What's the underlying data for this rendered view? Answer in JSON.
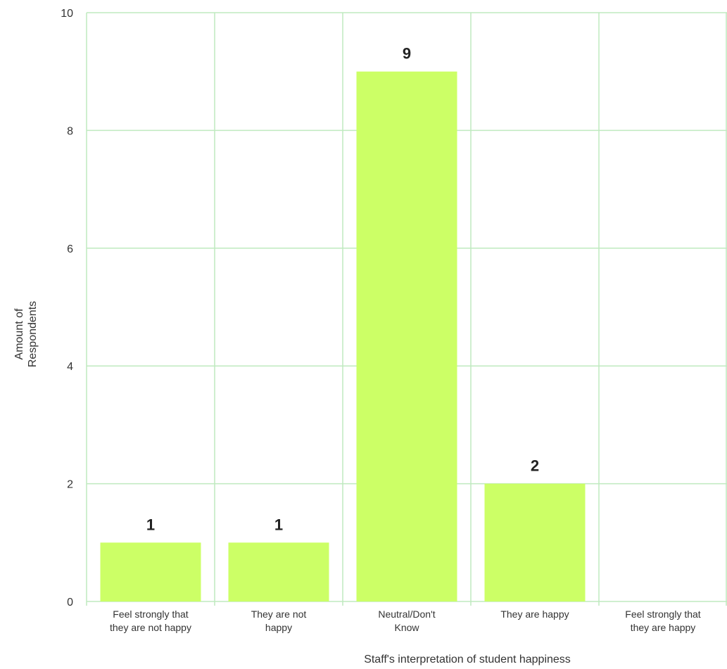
{
  "chart_data": {
    "type": "bar",
    "categories": [
      [
        "Feel strongly that",
        "they are not happy"
      ],
      [
        "They are not",
        "happy"
      ],
      [
        "Neutral/Don't",
        "Know"
      ],
      [
        "They are happy"
      ],
      [
        "Feel strongly that",
        "they are happy"
      ]
    ],
    "values": [
      1,
      1,
      9,
      2,
      0
    ],
    "data_labels": [
      "1",
      "1",
      "9",
      "2",
      ""
    ],
    "xlabel": "Staff's interpretation of student happiness",
    "ylabel": [
      "Amount of",
      "Respondents"
    ],
    "ylim": [
      0,
      10
    ],
    "yticks": [
      0,
      2,
      4,
      6,
      8,
      10
    ],
    "grid": true,
    "bar_color": "#ccff66",
    "grid_color": "#bfeabf"
  }
}
